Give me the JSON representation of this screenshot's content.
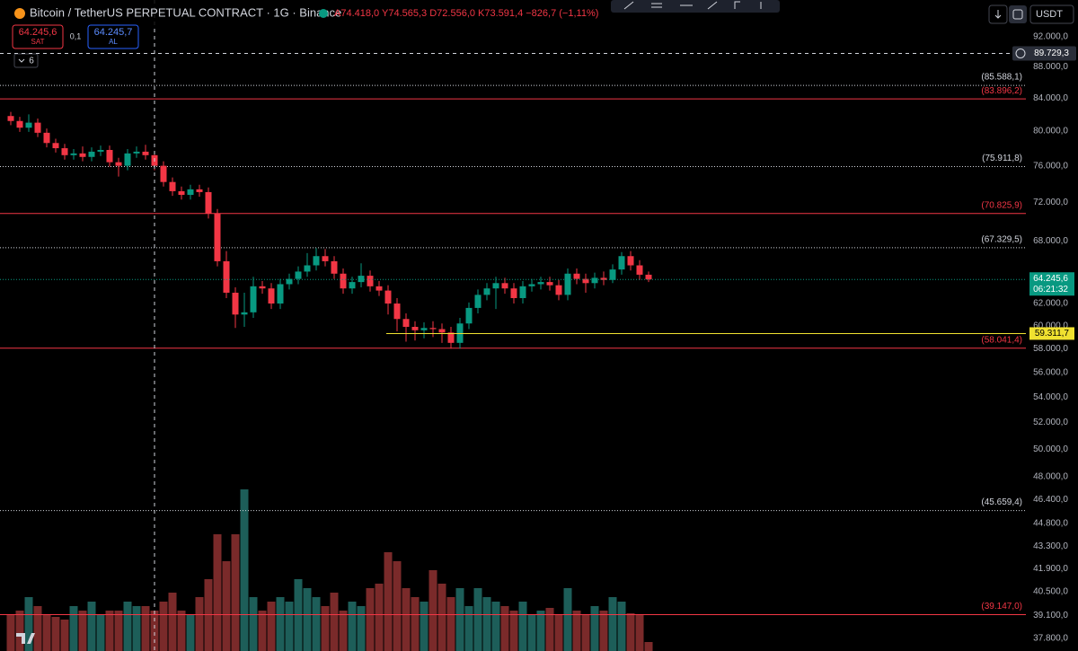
{
  "header": {
    "title": "Bitcoin / TetherUS PERPETUAL CONTRACT · 1G · Binance",
    "ohlc": "A74.418,0 Y74.565,3 D72.556,0 K73.591,4 −826,7 (−1,11%)",
    "sell_price": "64.245,6",
    "sell_label": "SAT",
    "spread": "0,1",
    "buy_price": "64.245,7",
    "buy_label": "AL",
    "indicators_count": "6",
    "currency": "USDT",
    "last_price_label": "64.245,6",
    "countdown": "06:21:32"
  },
  "chart_data": {
    "type": "candlestick",
    "log_scale": true,
    "ylim": [
      37100,
      97100
    ],
    "up_color": "#089981",
    "down_color": "#f23645",
    "volume_up_color": "#1d5e59",
    "volume_down_color": "#7a2a2a",
    "volume_lim": [
      0,
      200
    ],
    "yticks": [
      {
        "value": 92000,
        "label": "92.000,0"
      },
      {
        "value": 88000,
        "label": "88.000,0"
      },
      {
        "value": 84000,
        "label": "84.000,0"
      },
      {
        "value": 80000,
        "label": "80.000,0"
      },
      {
        "value": 76000,
        "label": "76.000,0"
      },
      {
        "value": 72000,
        "label": "72.000,0"
      },
      {
        "value": 68000,
        "label": "68.000,0"
      },
      {
        "value": 62000,
        "label": "62.000,0"
      },
      {
        "value": 60000,
        "label": "60.000,0"
      },
      {
        "value": 58000,
        "label": "58.000,0"
      },
      {
        "value": 56000,
        "label": "56.000,0"
      },
      {
        "value": 54000,
        "label": "54.000,0"
      },
      {
        "value": 52000,
        "label": "52.000,0"
      },
      {
        "value": 50000,
        "label": "50.000,0"
      },
      {
        "value": 48000,
        "label": "48.000,0"
      },
      {
        "value": 46400,
        "label": "46.400,0"
      },
      {
        "value": 44800,
        "label": "44.800,0"
      },
      {
        "value": 43300,
        "label": "43.300,0"
      },
      {
        "value": 41900,
        "label": "41.900,0"
      },
      {
        "value": 40500,
        "label": "40.500,0"
      },
      {
        "value": 39100,
        "label": "39.100,0"
      },
      {
        "value": 37800,
        "label": "37.800,0"
      }
    ],
    "levels": [
      {
        "value": 85588.1,
        "label": "(85.588,1)",
        "color": "#d1d4dc",
        "style": "dotted"
      },
      {
        "value": 83896.2,
        "label": "(83.896,2)",
        "color": "#f23645",
        "style": "solid"
      },
      {
        "value": 75911.8,
        "label": "(75.911,8)",
        "color": "#d1d4dc",
        "style": "dotted"
      },
      {
        "value": 70825.9,
        "label": "(70.825,9)",
        "color": "#f23645",
        "style": "solid"
      },
      {
        "value": 67329.5,
        "label": "(67.329,5)",
        "color": "#d1d4dc",
        "style": "dotted"
      },
      {
        "value": 58041.4,
        "label": "(58.041,4)",
        "color": "#f23645",
        "style": "solid"
      },
      {
        "value": 45659.4,
        "label": "(45.659,4)",
        "color": "#d1d4dc",
        "style": "dotted"
      },
      {
        "value": 39147.0,
        "label": "(39.147,0)",
        "color": "#f23645",
        "style": "solid"
      }
    ],
    "support": {
      "value": 59311.7,
      "label": "59.311,7",
      "color": "#f0e130"
    },
    "crosshair": {
      "value": 89729.3,
      "label": "89.729,3"
    },
    "open": [
      81800,
      81200,
      80400,
      81000,
      79800,
      78600,
      78000,
      77200,
      77400,
      77000,
      77600,
      77800,
      76400,
      76000,
      77400,
      77600,
      77200,
      76000,
      74200,
      73200,
      72800,
      73400,
      73100,
      70800,
      66000,
      63000,
      61000,
      61200,
      63600,
      63400,
      62000,
      63800,
      64300,
      65000,
      65600,
      66500,
      66000,
      64800,
      63400,
      64000,
      64600,
      63600,
      63200,
      62000,
      60600,
      59900,
      59600,
      59800,
      59700,
      59400,
      58500,
      60200,
      61600,
      62800,
      63400,
      63900,
      63400,
      62500,
      63600,
      63800,
      64000,
      63700,
      62800,
      64800,
      64300,
      63900,
      64400,
      64200,
      65200,
      66500,
      65600,
      64700
    ],
    "high": [
      82300,
      81700,
      82000,
      81500,
      80300,
      79100,
      78500,
      77900,
      78200,
      78100,
      78300,
      78300,
      76900,
      77900,
      78200,
      78400,
      77700,
      76500,
      74700,
      73700,
      73900,
      73900,
      73600,
      71300,
      67000,
      63500,
      63000,
      64500,
      64100,
      63900,
      64300,
      64800,
      65500,
      66800,
      67300,
      67200,
      66500,
      65300,
      64500,
      65800,
      65100,
      64100,
      63700,
      62500,
      61100,
      60400,
      60300,
      60400,
      60200,
      59900,
      60700,
      62100,
      63300,
      63900,
      64500,
      64400,
      63900,
      64100,
      64300,
      64500,
      64500,
      64200,
      65300,
      65300,
      64800,
      64900,
      65000,
      65700,
      66900,
      67000,
      66100,
      65000
    ],
    "low": [
      80700,
      79900,
      79900,
      79300,
      78100,
      77500,
      76700,
      76700,
      76500,
      76500,
      77100,
      75900,
      74800,
      75500,
      76900,
      76700,
      75500,
      73700,
      72700,
      72300,
      72300,
      72600,
      70300,
      65500,
      62500,
      59800,
      59900,
      60700,
      62900,
      61500,
      61500,
      63300,
      63800,
      64500,
      65100,
      65500,
      64300,
      62900,
      62900,
      63500,
      63100,
      62700,
      61000,
      59500,
      58600,
      58700,
      58900,
      59000,
      58500,
      58000,
      58000,
      59700,
      61100,
      62300,
      61500,
      62900,
      62000,
      62000,
      63100,
      63300,
      63200,
      62300,
      62300,
      63800,
      63000,
      63400,
      63700,
      63900,
      64700,
      65100,
      64200,
      64000
    ],
    "close": [
      81200,
      80400,
      81000,
      79800,
      78600,
      78000,
      77200,
      77400,
      77000,
      77600,
      77800,
      76400,
      76000,
      77400,
      77600,
      77200,
      76000,
      74200,
      73200,
      72800,
      73400,
      73100,
      70800,
      66000,
      63000,
      61000,
      61200,
      63600,
      63400,
      62000,
      63800,
      64300,
      65000,
      65600,
      66500,
      66000,
      64800,
      63400,
      64000,
      64600,
      63600,
      63200,
      62000,
      60600,
      59900,
      59600,
      59800,
      59700,
      59400,
      58500,
      60200,
      61600,
      62800,
      63400,
      63900,
      63400,
      62500,
      63600,
      63800,
      64000,
      63700,
      62800,
      64800,
      64300,
      63900,
      64400,
      64200,
      65200,
      66500,
      65600,
      64700,
      64245.6
    ],
    "volume": [
      40,
      45,
      60,
      50,
      40,
      38,
      35,
      50,
      45,
      55,
      40,
      45,
      45,
      55,
      50,
      50,
      45,
      55,
      65,
      45,
      40,
      60,
      80,
      130,
      100,
      130,
      180,
      60,
      45,
      55,
      60,
      55,
      80,
      70,
      60,
      50,
      65,
      45,
      55,
      50,
      70,
      75,
      110,
      100,
      70,
      60,
      55,
      90,
      75,
      60,
      70,
      50,
      70,
      60,
      55,
      50,
      45,
      55,
      40,
      45,
      48,
      40,
      70,
      45,
      40,
      50,
      45,
      60,
      55,
      42,
      40,
      10
    ]
  }
}
